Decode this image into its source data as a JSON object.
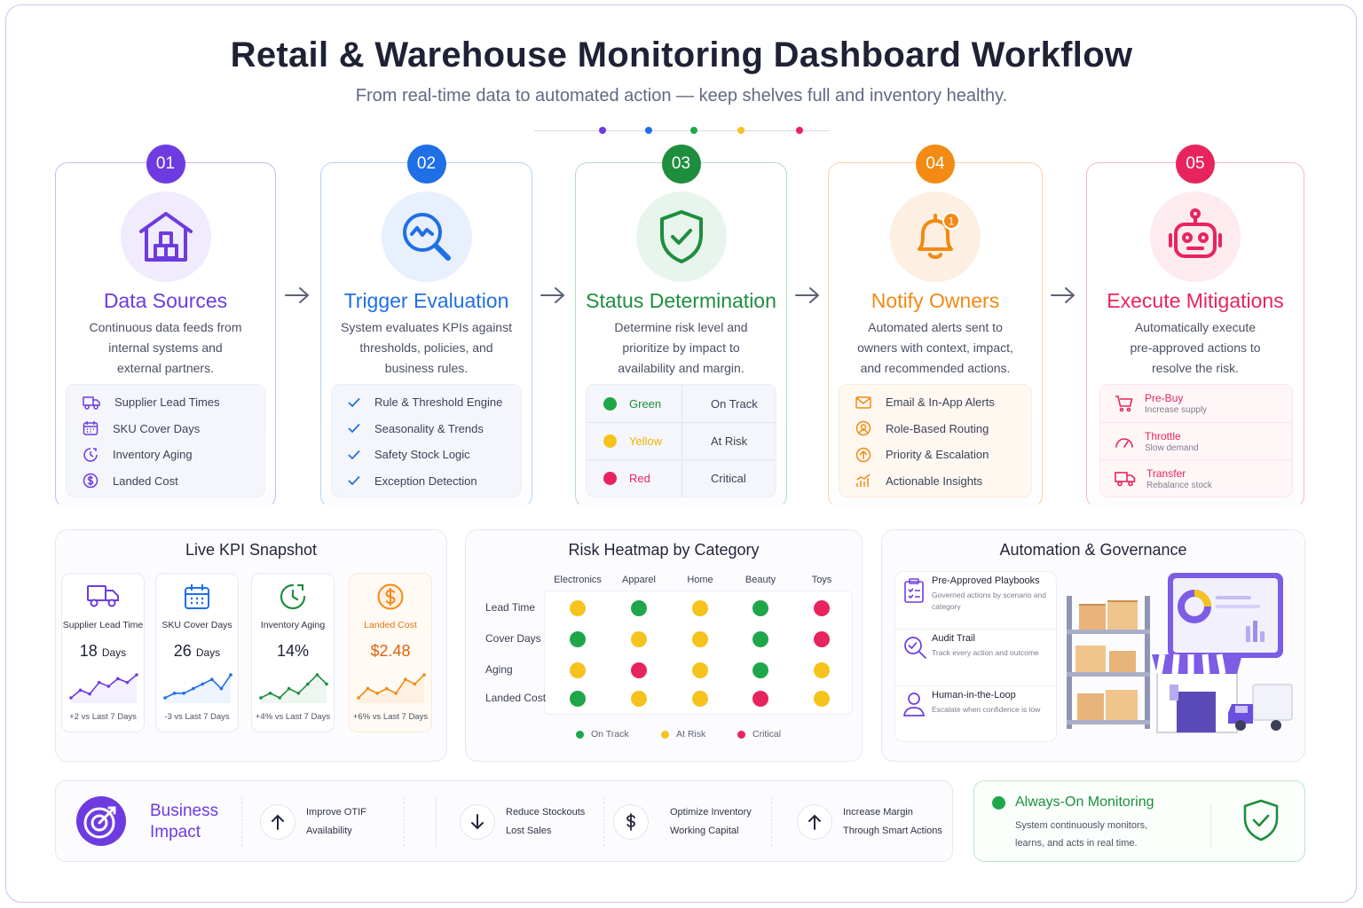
{
  "header": {
    "title": "Retail & Warehouse Monitoring Dashboard Workflow",
    "subtitle": "From real-time data to automated action — keep shelves full and inventory healthy."
  },
  "colors": {
    "purple": "#6d3be0",
    "blue": "#1f6fe6",
    "green": "#1e8e3e",
    "orange": "#f28a14",
    "pink": "#e8245f",
    "status_green": "#1fa64a",
    "status_yellow": "#f6c21c",
    "status_red": "#e8245f"
  },
  "steps": [
    {
      "number": "01",
      "title": "Data Sources",
      "icon": "warehouse-icon",
      "desc": [
        "Continuous data feeds from",
        "internal systems and",
        "external partners."
      ],
      "items": [
        {
          "icon": "truck-icon",
          "label": "Supplier Lead Times"
        },
        {
          "icon": "calendar-icon",
          "label": "SKU Cover Days"
        },
        {
          "icon": "clock-icon",
          "label": "Inventory Aging"
        },
        {
          "icon": "dollar-icon",
          "label": "Landed Cost"
        }
      ]
    },
    {
      "number": "02",
      "title": "Trigger Evaluation",
      "icon": "magnifier-trend-icon",
      "desc": [
        "System evaluates KPIs against",
        "thresholds, policies, and",
        "business rules."
      ],
      "items": [
        {
          "icon": "check-icon",
          "label": "Rule & Threshold Engine"
        },
        {
          "icon": "check-icon",
          "label": "Seasonality & Trends"
        },
        {
          "icon": "check-icon",
          "label": "Safety Stock Logic"
        },
        {
          "icon": "check-icon",
          "label": "Exception Detection"
        }
      ]
    },
    {
      "number": "03",
      "title": "Status Determination",
      "icon": "shield-check-icon",
      "desc": [
        "Determine risk level and",
        "prioritize by impact to",
        "availability and margin."
      ],
      "statuses": [
        {
          "label": "Green",
          "meaning": "On Track",
          "color": "#1fa64a"
        },
        {
          "label": "Yellow",
          "meaning": "At Risk",
          "color": "#f6c21c"
        },
        {
          "label": "Red",
          "meaning": "Critical",
          "color": "#e8245f"
        }
      ]
    },
    {
      "number": "04",
      "title": "Notify Owners",
      "icon": "bell-icon",
      "bell_badge": "1",
      "desc": [
        "Automated alerts sent to",
        "owners with context, impact,",
        "and recommended actions."
      ],
      "items": [
        {
          "icon": "mail-icon",
          "label": "Email & In-App Alerts"
        },
        {
          "icon": "user-circle-icon",
          "label": "Role-Based Routing"
        },
        {
          "icon": "arrow-up-circle-icon",
          "label": "Priority & Escalation"
        },
        {
          "icon": "bar-chart-icon",
          "label": "Actionable Insights"
        }
      ]
    },
    {
      "number": "05",
      "title": "Execute Mitigations",
      "icon": "robot-icon",
      "desc": [
        "Automatically execute",
        "pre-approved actions to",
        "resolve the risk."
      ],
      "actions": [
        {
          "icon": "cart-icon",
          "title": "Pre-Buy",
          "sub": "Increase supply"
        },
        {
          "icon": "gauge-icon",
          "title": "Throttle",
          "sub": "Slow demand"
        },
        {
          "icon": "truck-icon",
          "title": "Transfer",
          "sub": "Rebalance stock"
        }
      ]
    }
  ],
  "kpi": {
    "title": "Live KPI Snapshot",
    "cards": [
      {
        "icon": "truck-icon",
        "label": "Supplier Lead Time",
        "value": "18",
        "unit": "Days",
        "delta": "+2 vs Last 7 Days",
        "trend": [
          4,
          6,
          5,
          8,
          7,
          9,
          8,
          10
        ],
        "color": "#6d3be0",
        "highlight": false
      },
      {
        "icon": "calendar-icon",
        "label": "SKU Cover Days",
        "value": "26",
        "unit": "Days",
        "delta": "-3 vs Last 7 Days",
        "trend": [
          3,
          4,
          4,
          5,
          6,
          7,
          5,
          8
        ],
        "color": "#1f6fe6",
        "highlight": false
      },
      {
        "icon": "clock-icon",
        "label": "Inventory Aging",
        "value": "14%",
        "unit": "",
        "delta": "+4% vs Last 7 Days",
        "trend": [
          4,
          5,
          4,
          6,
          5,
          7,
          9,
          7
        ],
        "color": "#1e8e3e",
        "highlight": false
      },
      {
        "icon": "dollar-icon",
        "label": "Landed Cost",
        "value": "$2.48",
        "unit": "",
        "delta": "+6% vs Last 7 Days",
        "trend": [
          4,
          6,
          5,
          6,
          5,
          8,
          7,
          9
        ],
        "color": "#f28a14",
        "highlight": true
      }
    ]
  },
  "heatmap": {
    "title": "Risk Heatmap by Category",
    "columns": [
      "Electronics",
      "Apparel",
      "Home",
      "Beauty",
      "Toys"
    ],
    "rows": [
      "Lead Time",
      "Cover Days",
      "Aging",
      "Landed Cost"
    ],
    "cells": [
      [
        "yellow",
        "green",
        "yellow",
        "green",
        "red"
      ],
      [
        "green",
        "yellow",
        "yellow",
        "green",
        "red"
      ],
      [
        "yellow",
        "red",
        "yellow",
        "green",
        "yellow"
      ],
      [
        "green",
        "yellow",
        "yellow",
        "red",
        "yellow"
      ]
    ],
    "legend": [
      {
        "label": "On Track",
        "color": "#1fa64a"
      },
      {
        "label": "At Risk",
        "color": "#f6c21c"
      },
      {
        "label": "Critical",
        "color": "#e8245f"
      }
    ]
  },
  "governance": {
    "title": "Automation & Governance",
    "items": [
      {
        "icon": "clipboard-icon",
        "title": "Pre-Approved Playbooks",
        "sub": "Governed actions by scenario and category"
      },
      {
        "icon": "audit-search-icon",
        "title": "Audit Trail",
        "sub": "Track every action and outcome"
      },
      {
        "icon": "person-icon",
        "title": "Human-in-the-Loop",
        "sub": "Escalate when confidence is low"
      }
    ]
  },
  "impact": {
    "title_line1": "Business",
    "title_line2": "Impact",
    "icon": "target-icon",
    "items": [
      {
        "icon": "arrow-up-icon",
        "line1": "Improve OTIF",
        "line2": "Availability"
      },
      {
        "icon": "arrow-down-icon",
        "line1": "Reduce Stockouts",
        "line2": "Lost Sales"
      },
      {
        "icon": "dollar-icon",
        "line1": "Optimize Inventory",
        "line2": "Working Capital"
      },
      {
        "icon": "arrow-up-icon",
        "line1": "Increase Margin",
        "line2": "Through Smart Actions"
      }
    ]
  },
  "monitoring": {
    "title": "Always-On Monitoring",
    "line1": "System continuously monitors,",
    "line2": "learns, and acts in real time.",
    "icon": "shield-check-icon"
  }
}
